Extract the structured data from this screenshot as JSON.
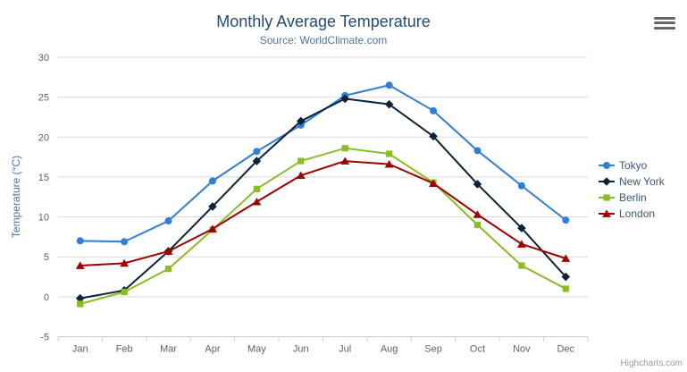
{
  "chart_data": {
    "type": "line",
    "title": "Monthly Average Temperature",
    "subtitle": "Source: WorldClimate.com",
    "xlabel": "",
    "ylabel": "Temperature (°C)",
    "categories": [
      "Jan",
      "Feb",
      "Mar",
      "Apr",
      "May",
      "Jun",
      "Jul",
      "Aug",
      "Sep",
      "Oct",
      "Nov",
      "Dec"
    ],
    "series": [
      {
        "name": "Tokyo",
        "marker": "circle",
        "color": "#2f7ed8",
        "values": [
          7.0,
          6.9,
          9.5,
          14.5,
          18.2,
          21.5,
          25.2,
          26.5,
          23.3,
          18.3,
          13.9,
          9.6
        ]
      },
      {
        "name": "New York",
        "marker": "diamond",
        "color": "#0d233a",
        "values": [
          -0.2,
          0.8,
          5.7,
          11.3,
          17.0,
          22.0,
          24.8,
          24.1,
          20.1,
          14.1,
          8.6,
          2.5
        ]
      },
      {
        "name": "Berlin",
        "marker": "square",
        "color": "#8bbc21",
        "values": [
          -0.9,
          0.6,
          3.5,
          8.4,
          13.5,
          17.0,
          18.6,
          17.9,
          14.3,
          9.0,
          3.9,
          1.0
        ]
      },
      {
        "name": "London",
        "marker": "triangle",
        "color": "#a00000",
        "values": [
          3.9,
          4.2,
          5.7,
          8.5,
          11.9,
          15.2,
          17.0,
          16.6,
          14.2,
          10.3,
          6.6,
          4.8
        ]
      }
    ],
    "ylim": [
      -5,
      30
    ],
    "yticks": [
      -5,
      0,
      5,
      10,
      15,
      20,
      25,
      30
    ],
    "grid": true,
    "legend_position": "right",
    "colors": {
      "grid_line": "#d8d8d8",
      "axis_line": "#c0d0e0",
      "tick_text": "#606060",
      "title_text": "#274b6d",
      "subtitle_text": "#4d759e",
      "legend_text": "#3e576f"
    }
  },
  "credits_label": "Highcharts.com"
}
